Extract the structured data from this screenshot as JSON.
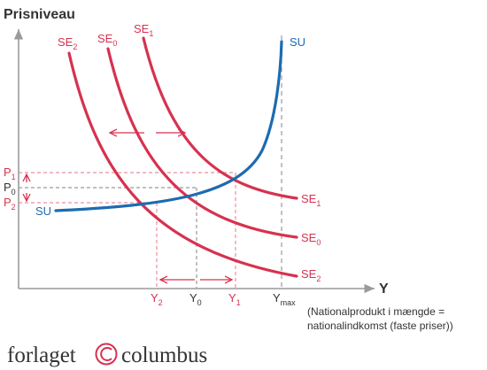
{
  "title": "Prisniveau",
  "x_axis_label": "Y",
  "x_axis_note_line1": "(Nationalprodukt i mængde =",
  "x_axis_note_line2": "nationalindkomst (faste priser))",
  "curves": {
    "su_label": "SU",
    "se_base": "SE",
    "se2_sub": "2",
    "se0_sub": "0",
    "se1_sub": "1"
  },
  "price_levels": {
    "base": "P",
    "p1_sub": "1",
    "p0_sub": "0",
    "p2_sub": "2"
  },
  "output_levels": {
    "base": "Y",
    "y2_sub": "2",
    "y0_sub": "0",
    "y1_sub": "1",
    "ymax_sub": "max"
  },
  "brand": {
    "left": "forlaget",
    "right": "columbus"
  },
  "colors": {
    "se_curves": "#d6324f",
    "su_curve": "#1c6bb0",
    "axes": "#9a9a9a",
    "text": "#333333"
  }
}
